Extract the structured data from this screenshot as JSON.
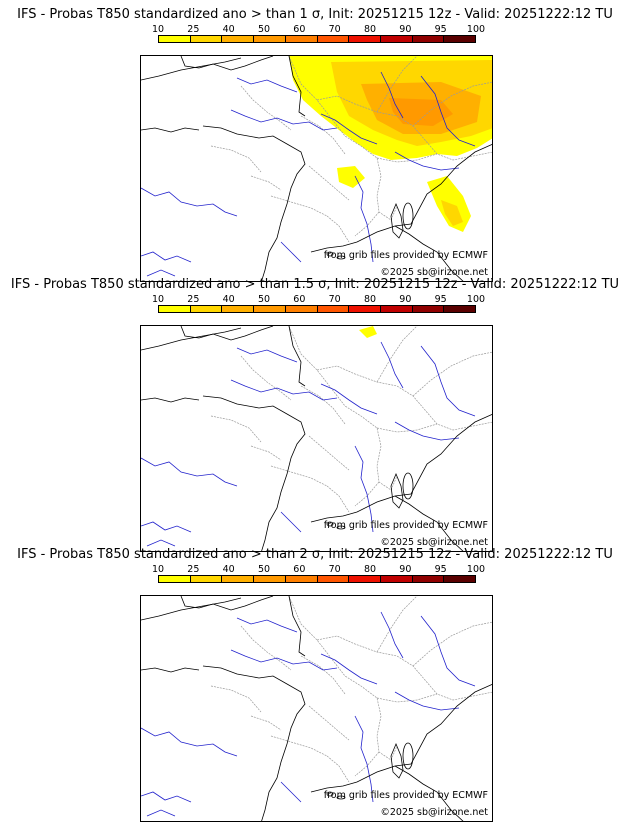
{
  "legend": {
    "ticks": [
      "10",
      "25",
      "40",
      "50",
      "60",
      "70",
      "80",
      "90",
      "95",
      "100"
    ],
    "colors": [
      "#ffff00",
      "#ffd700",
      "#ffb000",
      "#ff9900",
      "#ff7f00",
      "#ff5500",
      "#ee1100",
      "#c00000",
      "#900000",
      "#5a0000"
    ]
  },
  "panels": [
    {
      "title": "IFS - Probas T850  standardized ano > than 1 σ, Init: 20251215 12z - Valid: 20251222:12 TU",
      "credit_source": "from grib files provided by ECMWF",
      "credit_copyright": "©2025 sb@irizone.net"
    },
    {
      "title": "IFS - Probas T850  standardized ano > than 1.5 σ, Init: 20251215 12z - Valid: 20251222:12 TU",
      "credit_source": "from grib files provided by ECMWF",
      "credit_copyright": "©2025 sb@irizone.net"
    },
    {
      "title": "IFS - Probas T850  standardized ano > than 2 σ, Init: 20251215 12z - Valid: 20251222:12 TU",
      "credit_source": "from grib files provided by ECMWF",
      "credit_copyright": "©2025 sb@irizone.net"
    }
  ],
  "colors": {
    "coast": "#000000",
    "border": "#9a9a9a",
    "river": "#2222cc"
  }
}
